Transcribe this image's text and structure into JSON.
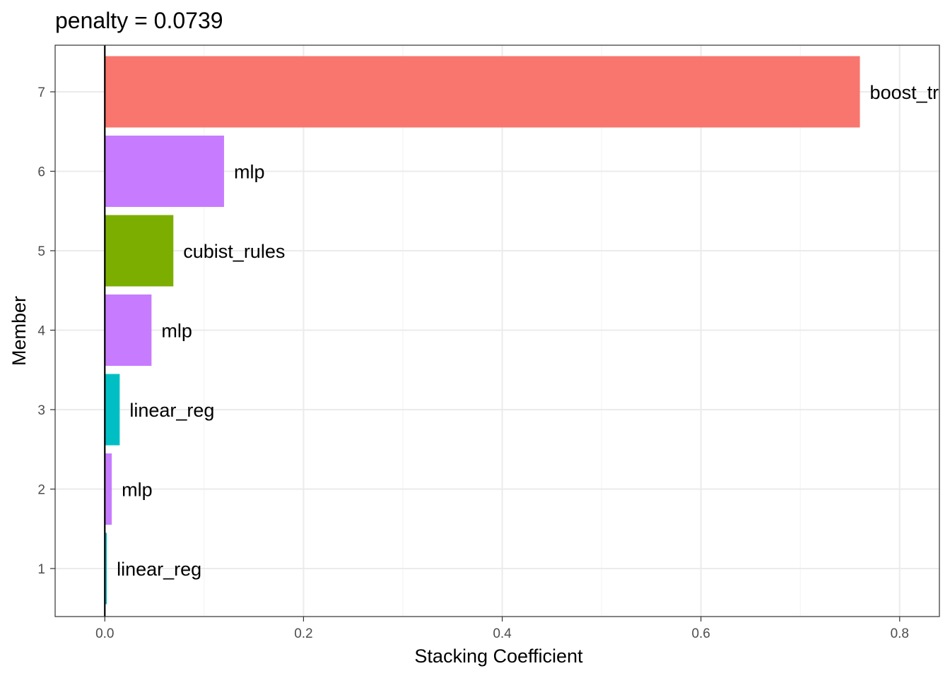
{
  "chart_data": {
    "type": "bar",
    "orientation": "horizontal",
    "title": "penalty = 0.0739",
    "xlabel": "Stacking Coefficient",
    "ylabel": "Member",
    "xlim": [
      -0.05,
      0.84
    ],
    "xticks": [
      0.0,
      0.2,
      0.4,
      0.6,
      0.8
    ],
    "xtick_labels": [
      "0.0",
      "0.2",
      "0.4",
      "0.6",
      "0.8"
    ],
    "categories": [
      "1",
      "2",
      "3",
      "4",
      "5",
      "6",
      "7"
    ],
    "values": [
      0.002,
      0.007,
      0.015,
      0.047,
      0.069,
      0.12,
      0.76
    ],
    "labels": [
      "linear_reg",
      "mlp",
      "linear_reg",
      "mlp",
      "cubist_rules",
      "mlp",
      "boost_tree"
    ],
    "colors": [
      "#00BFC4",
      "#C77CFF",
      "#00BFC4",
      "#C77CFF",
      "#7CAE00",
      "#C77CFF",
      "#F8766D"
    ],
    "grid": true,
    "legend": "none"
  }
}
